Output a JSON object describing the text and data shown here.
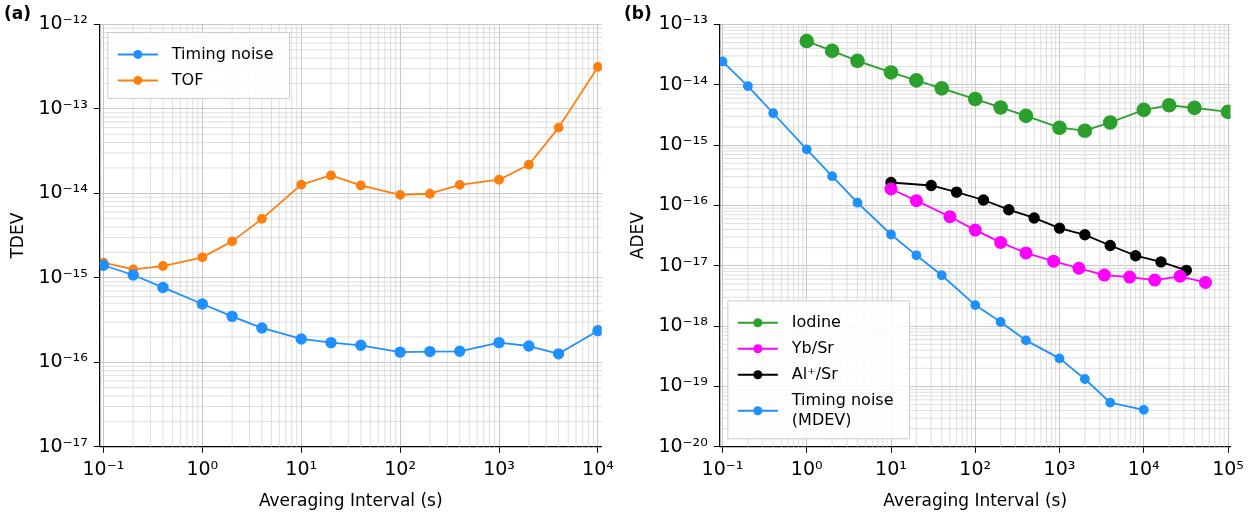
{
  "chart_data": [
    {
      "type": "line",
      "title": "(a)",
      "xlabel": "Averaging Interval (s)",
      "ylabel": "TDEV",
      "log": "xy",
      "grid": true,
      "legend": "top left",
      "marker": "circle",
      "line_style": "solid",
      "xlim": [
        0.092,
        10900
      ],
      "xticks": [
        {
          "value": 0.1,
          "label": "10⁻¹"
        },
        {
          "value": 1,
          "label": "10⁰"
        },
        {
          "value": 10,
          "label": "10¹"
        },
        {
          "value": 100,
          "label": "10²"
        },
        {
          "value": 1000,
          "label": "10³"
        },
        {
          "value": 10000,
          "label": "10⁴"
        }
      ],
      "ylim": [
        1e-17,
        1e-12
      ],
      "yticks": [
        {
          "value": 1e-17,
          "label": "10⁻¹⁷"
        },
        {
          "value": 1e-16,
          "label": "10⁻¹⁶"
        },
        {
          "value": 1e-15,
          "label": "10⁻¹⁵"
        },
        {
          "value": 1e-14,
          "label": "10⁻¹⁴"
        },
        {
          "value": 1e-13,
          "label": "10⁻¹³"
        },
        {
          "value": 1e-12,
          "label": "10⁻¹²"
        }
      ],
      "series": [
        {
          "name": "Timing noise",
          "color": "#1e90ff",
          "x": [
            0.1,
            0.2,
            0.4,
            1,
            2,
            4,
            10,
            20,
            40,
            100,
            200,
            400,
            1000,
            2000,
            4000,
            10000
          ],
          "values": [
            1.41e-15,
            1.08e-15,
            7.7e-16,
            4.9e-16,
            3.5e-16,
            2.55e-16,
            1.89e-16,
            1.71e-16,
            1.59e-16,
            1.32e-16,
            1.34e-16,
            1.35e-16,
            1.71e-16,
            1.56e-16,
            1.26e-16,
            2.37e-16
          ]
        },
        {
          "name": "TOF",
          "color": "#ff7f0e",
          "x": [
            0.1,
            0.2,
            0.4,
            1,
            2,
            4,
            10,
            20,
            40,
            100,
            200,
            400,
            1000,
            2000,
            4000,
            10000
          ],
          "values": [
            1.51e-15,
            1.26e-15,
            1.38e-15,
            1.75e-15,
            2.7e-15,
            4.99e-15,
            1.27e-14,
            1.63e-14,
            1.24e-14,
            9.6e-15,
            9.9e-15,
            1.26e-14,
            1.45e-14,
            2.18e-14,
            6e-14,
            3.14e-13
          ]
        }
      ]
    },
    {
      "type": "line",
      "title": "(b)",
      "xlabel": "Averaging Interval (s)",
      "ylabel": "ADEV",
      "log": "xy",
      "grid": true,
      "legend": "bottom left",
      "marker": "circle",
      "line_style": "solid",
      "xlim": [
        0.093,
        107000
      ],
      "xticks": [
        {
          "value": 0.1,
          "label": "10⁻¹"
        },
        {
          "value": 1,
          "label": "10⁰"
        },
        {
          "value": 10,
          "label": "10¹"
        },
        {
          "value": 100,
          "label": "10²"
        },
        {
          "value": 1000,
          "label": "10³"
        },
        {
          "value": 10000,
          "label": "10⁴"
        },
        {
          "value": 100000,
          "label": "10⁵"
        }
      ],
      "ylim": [
        1e-20,
        1e-13
      ],
      "yticks": [
        {
          "value": 1e-20,
          "label": "10⁻²⁰"
        },
        {
          "value": 1e-19,
          "label": "10⁻¹⁹"
        },
        {
          "value": 1e-18,
          "label": "10⁻¹⁸"
        },
        {
          "value": 1e-17,
          "label": "10⁻¹⁷"
        },
        {
          "value": 1e-16,
          "label": "10⁻¹⁶"
        },
        {
          "value": 1e-15,
          "label": "10⁻¹⁵"
        },
        {
          "value": 1e-14,
          "label": "10⁻¹⁴"
        },
        {
          "value": 1e-13,
          "label": "10⁻¹³"
        }
      ],
      "series": [
        {
          "name": "Iodine",
          "color": "#2ca02c",
          "x": [
            1,
            2,
            4,
            10,
            20,
            40,
            100,
            200,
            400,
            1000,
            2000,
            4000,
            10000,
            20000,
            40000,
            100000
          ],
          "values": [
            5.3e-14,
            3.64e-14,
            2.49e-14,
            1.6e-14,
            1.18e-14,
            8.7e-15,
            5.8e-15,
            4.2e-15,
            3.05e-15,
            1.94e-15,
            1.73e-15,
            2.37e-15,
            3.83e-15,
            4.57e-15,
            4.13e-15,
            3.55e-15
          ]
        },
        {
          "name": "Yb/Sr",
          "color": "#ff00ff",
          "x": [
            10,
            20,
            50,
            100,
            200,
            400,
            850,
            1700,
            3400,
            6800,
            13500,
            27000,
            54000
          ],
          "values": [
            1.87e-16,
            1.2e-16,
            6.5e-17,
            3.9e-17,
            2.44e-17,
            1.63e-17,
            1.19e-17,
            9.1e-18,
            7e-18,
            6.5e-18,
            5.8e-18,
            6.7e-18,
            5.3e-18
          ]
        },
        {
          "name": "Al⁺/Sr",
          "color": "#000000",
          "x": [
            10,
            30,
            60,
            125,
            250,
            500,
            1000,
            2000,
            4000,
            8000,
            16000,
            32000
          ],
          "values": [
            2.4e-16,
            2.14e-16,
            1.66e-16,
            1.23e-16,
            8.5e-17,
            6.2e-17,
            4.2e-17,
            3.26e-17,
            2.17e-17,
            1.47e-17,
            1.16e-17,
            8.4e-18
          ]
        },
        {
          "name": "Timing noise (MDEV)",
          "color": "#1e90ff",
          "x": [
            0.1,
            0.2,
            0.4,
            1,
            2,
            4,
            10,
            20,
            40,
            100,
            200,
            400,
            1000,
            2000,
            4000,
            10000
          ],
          "values": [
            2.43e-14,
            9.5e-15,
            3.37e-15,
            8.5e-16,
            3.05e-16,
            1.11e-16,
            3.3e-17,
            1.49e-17,
            6.97e-18,
            2.23e-18,
            1.17e-18,
            5.8e-19,
            2.92e-19,
            1.33e-19,
            5.4e-20,
            4.1e-20
          ]
        }
      ]
    }
  ]
}
